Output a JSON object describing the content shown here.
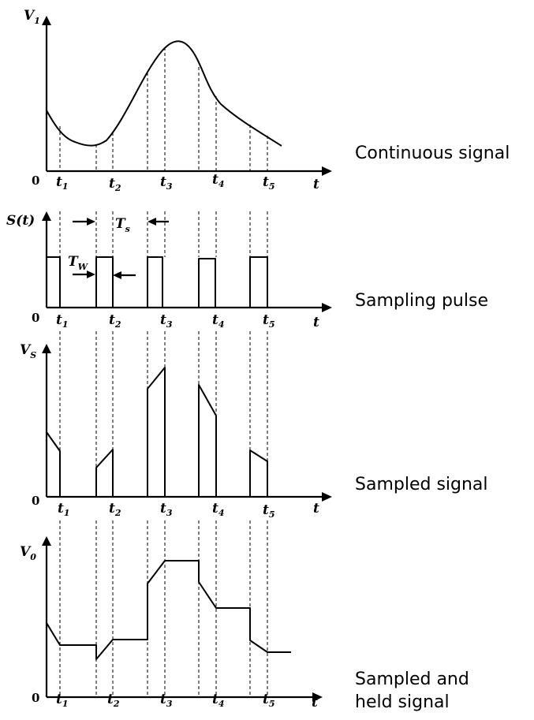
{
  "axis": {
    "origin": "0",
    "t": "t",
    "ticks": [
      {
        "base": "t",
        "sub": "1"
      },
      {
        "base": "t",
        "sub": "2"
      },
      {
        "base": "t",
        "sub": "3"
      },
      {
        "base": "t",
        "sub": "4"
      },
      {
        "base": "t",
        "sub": "5"
      }
    ]
  },
  "panels": [
    {
      "id": "continuous",
      "ylabel_base": "V",
      "ylabel_sub": "1",
      "caption": [
        "Continuous signal"
      ]
    },
    {
      "id": "pulse",
      "ylabel_base": "S(t)",
      "ylabel_sub": "",
      "caption": [
        "Sampling pulse"
      ],
      "ts_label": {
        "base": "T",
        "sub": "s"
      },
      "tw_label": {
        "base": "T",
        "sub": "W"
      }
    },
    {
      "id": "sampled",
      "ylabel_base": "V",
      "ylabel_sub": "S",
      "caption": [
        "Sampled signal"
      ]
    },
    {
      "id": "held",
      "ylabel_base": "V",
      "ylabel_sub": "0",
      "caption": [
        "Sampled and",
        "held signal"
      ]
    }
  ]
}
